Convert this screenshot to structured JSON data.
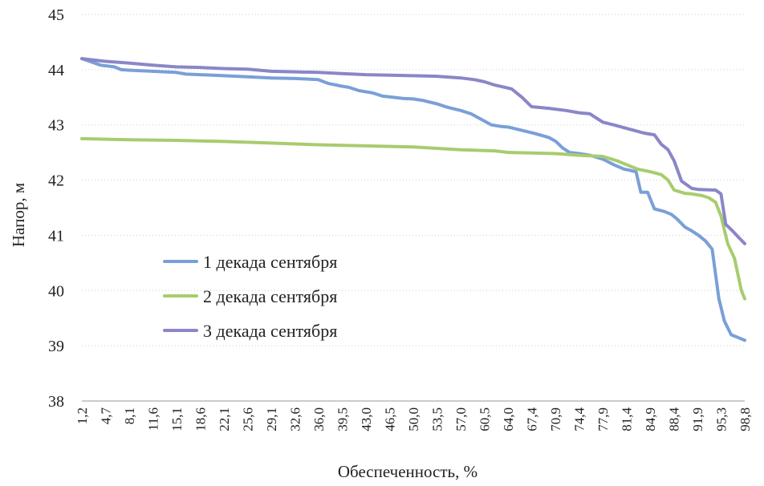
{
  "chart_data": {
    "type": "line",
    "title": "",
    "xlabel": "Обеспеченность, %",
    "ylabel": "Напор, м",
    "ylim": [
      38,
      45
    ],
    "yticks": [
      "38",
      "39",
      "40",
      "41",
      "42",
      "43",
      "44",
      "45"
    ],
    "xlim": [
      1.2,
      98.8
    ],
    "xticks": [
      "1,2",
      "4,7",
      "8,1",
      "11,6",
      "15,1",
      "18,6",
      "22,1",
      "25,6",
      "29,1",
      "32,6",
      "36,0",
      "39,5",
      "43,0",
      "46,5",
      "50,0",
      "53,5",
      "57,0",
      "60,5",
      "64,0",
      "67,4",
      "70,9",
      "74,4",
      "77,9",
      "81,4",
      "84,9",
      "88,4",
      "91,9",
      "95,3",
      "98,8"
    ],
    "grid": true,
    "legend": "center-left",
    "series": [
      {
        "name": "1 декада сентября",
        "color": "#7a9fd8",
        "x": [
          1.2,
          4.0,
          6.0,
          7.0,
          8.1,
          11.6,
          15.1,
          16.5,
          18.6,
          22.1,
          25.6,
          29.1,
          32.6,
          34.5,
          36.0,
          37.5,
          39.5,
          40.5,
          42.0,
          44.0,
          45.5,
          47.0,
          48.5,
          50.0,
          51.5,
          53.5,
          55.0,
          57.0,
          58.5,
          60.0,
          61.5,
          63.0,
          64.0,
          66.0,
          68.0,
          70.0,
          71.0,
          72.0,
          73.0,
          74.4,
          76.0,
          77.9,
          79.5,
          81.0,
          81.8,
          82.8,
          83.5,
          84.5,
          85.5,
          87.0,
          88.0,
          88.8,
          90.0,
          91.0,
          92.0,
          93.0,
          94.0,
          95.0,
          95.8,
          96.8,
          97.8,
          98.8
        ],
        "values": [
          44.2,
          44.08,
          44.05,
          44.0,
          43.99,
          43.97,
          43.95,
          43.92,
          43.91,
          43.89,
          43.87,
          43.85,
          43.84,
          43.83,
          43.82,
          43.75,
          43.7,
          43.68,
          43.62,
          43.58,
          43.52,
          43.5,
          43.48,
          43.47,
          43.44,
          43.38,
          43.32,
          43.26,
          43.2,
          43.1,
          43.0,
          42.97,
          42.96,
          42.9,
          42.84,
          42.77,
          42.7,
          42.58,
          42.5,
          42.48,
          42.45,
          42.38,
          42.28,
          42.2,
          42.18,
          42.15,
          41.78,
          41.78,
          41.48,
          41.43,
          41.38,
          41.3,
          41.15,
          41.08,
          41.0,
          40.9,
          40.75,
          39.85,
          39.45,
          39.2,
          39.15,
          39.1
        ]
      },
      {
        "name": "2 декада сентября",
        "color": "#a8cc6e",
        "x": [
          1.2,
          8.1,
          15.1,
          22.1,
          29.1,
          36.0,
          43.0,
          50.0,
          57.0,
          62.0,
          64.0,
          67.4,
          70.9,
          74.4,
          77.9,
          80.0,
          81.4,
          83.0,
          84.9,
          86.5,
          87.5,
          88.4,
          90.0,
          91.0,
          92.5,
          93.5,
          94.5,
          95.3,
          96.3,
          97.3,
          98.3,
          98.8
        ],
        "values": [
          42.75,
          42.73,
          42.72,
          42.7,
          42.67,
          42.64,
          42.62,
          42.6,
          42.55,
          42.53,
          42.5,
          42.49,
          42.48,
          42.45,
          42.43,
          42.35,
          42.28,
          42.2,
          42.15,
          42.1,
          42.0,
          41.82,
          41.76,
          41.75,
          41.72,
          41.68,
          41.6,
          41.35,
          40.85,
          40.58,
          40.0,
          39.85
        ]
      },
      {
        "name": "3 декада сентября",
        "color": "#8a86c8",
        "x": [
          1.2,
          4.7,
          8.1,
          11.6,
          15.1,
          18.6,
          22.1,
          25.6,
          29.1,
          32.6,
          36.0,
          39.5,
          43.0,
          46.5,
          50.0,
          53.5,
          57.0,
          59.0,
          60.5,
          62.0,
          63.5,
          64.5,
          66.0,
          67.4,
          70.0,
          72.5,
          74.4,
          76.0,
          77.9,
          79.5,
          81.0,
          82.5,
          84.0,
          85.5,
          86.5,
          87.5,
          88.4,
          89.5,
          91.0,
          92.0,
          94.5,
          95.3,
          96.0,
          97.0,
          98.0,
          98.8
        ],
        "values": [
          44.2,
          44.15,
          44.12,
          44.08,
          44.05,
          44.04,
          44.02,
          44.01,
          43.97,
          43.96,
          43.95,
          43.93,
          43.91,
          43.9,
          43.89,
          43.88,
          43.85,
          43.82,
          43.78,
          43.72,
          43.68,
          43.65,
          43.5,
          43.33,
          43.3,
          43.26,
          43.22,
          43.2,
          43.05,
          43.0,
          42.95,
          42.9,
          42.85,
          42.82,
          42.65,
          42.55,
          42.35,
          41.98,
          41.85,
          41.83,
          41.82,
          41.75,
          41.2,
          41.08,
          40.95,
          40.85
        ]
      }
    ]
  }
}
